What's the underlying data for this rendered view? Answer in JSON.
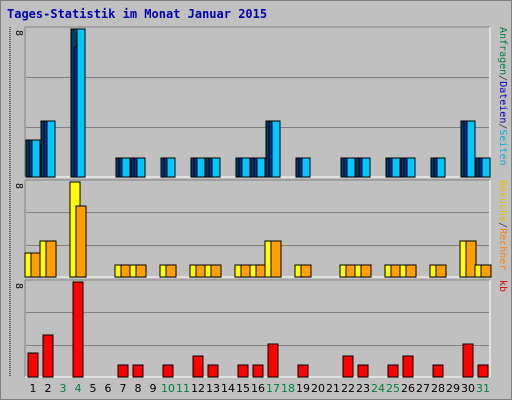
{
  "title": "Tages-Statistik im Monat Januar 2015",
  "chart_data": {
    "type": "bar",
    "categories": [
      "1",
      "2",
      "3",
      "4",
      "5",
      "6",
      "7",
      "8",
      "9",
      "10",
      "11",
      "12",
      "13",
      "14",
      "15",
      "16",
      "17",
      "18",
      "19",
      "20",
      "21",
      "22",
      "23",
      "24",
      "25",
      "26",
      "27",
      "28",
      "29",
      "30",
      "31"
    ],
    "weekend_categories": [
      "3",
      "4",
      "10",
      "11",
      "17",
      "18",
      "24",
      "25",
      "31"
    ],
    "panels": [
      {
        "ymax_label": "8",
        "ymax": 8,
        "right_labels": [
          {
            "text": "Anfragen",
            "color": "#008040"
          },
          {
            "text": "/",
            "color": "#404040"
          },
          {
            "text": "Dateien",
            "color": "#0000c0"
          },
          {
            "text": "/",
            "color": "#404040"
          },
          {
            "text": "Seiten",
            "color": "#00b0d0"
          }
        ],
        "series": [
          {
            "name": "Anfragen",
            "color": "#004060",
            "values": [
              2,
              3,
              0,
              8,
              0,
              0,
              1,
              1,
              0,
              1,
              0,
              1,
              1,
              0,
              1,
              1,
              3,
              0,
              1,
              0,
              0,
              1,
              1,
              0,
              1,
              1,
              0,
              1,
              0,
              3,
              1
            ]
          },
          {
            "name": "Dateien",
            "color": "#0030a0",
            "values": [
              2,
              3,
              0,
              7,
              0,
              0,
              1,
              1,
              0,
              1,
              0,
              1,
              1,
              0,
              1,
              1,
              3,
              0,
              1,
              0,
              0,
              1,
              1,
              0,
              1,
              1,
              0,
              1,
              0,
              3,
              1
            ]
          },
          {
            "name": "Seiten",
            "color": "#00c8ff",
            "values": [
              2,
              3,
              0,
              8,
              0,
              0,
              1,
              1,
              0,
              1,
              0,
              1,
              1,
              0,
              1,
              1,
              3,
              0,
              1,
              0,
              0,
              1,
              1,
              0,
              1,
              1,
              0,
              1,
              0,
              3,
              1
            ]
          }
        ]
      },
      {
        "ymax_label": "8",
        "ymax": 8,
        "right_labels": [
          {
            "text": "Besuche",
            "color": "#e0c000"
          },
          {
            "text": "/",
            "color": "#404040"
          },
          {
            "text": "Rechner",
            "color": "#ff8000"
          }
        ],
        "series": [
          {
            "name": "Besuche",
            "color": "#ffff00",
            "values": [
              2,
              3,
              0,
              8,
              0,
              0,
              1,
              1,
              0,
              1,
              0,
              1,
              1,
              0,
              1,
              1,
              3,
              0,
              1,
              0,
              0,
              1,
              1,
              0,
              1,
              1,
              0,
              1,
              0,
              3,
              1
            ]
          },
          {
            "name": "Rechner",
            "color": "#ffa000",
            "values": [
              2,
              3,
              0,
              6,
              0,
              0,
              1,
              1,
              0,
              1,
              0,
              1,
              1,
              0,
              1,
              1,
              3,
              0,
              1,
              0,
              0,
              1,
              1,
              0,
              1,
              1,
              0,
              1,
              0,
              3,
              1
            ]
          }
        ]
      },
      {
        "ymax_label": "8",
        "ymax": 8,
        "right_labels": [
          {
            "text": "kb",
            "color": "#e00000"
          }
        ],
        "series": [
          {
            "name": "kb",
            "color": "#ff0000",
            "values": [
              2.0,
              3.5,
              0,
              8.0,
              0,
              0,
              1.0,
              1.0,
              0,
              1.0,
              0,
              1.8,
              1.0,
              0,
              1.0,
              1.0,
              2.8,
              0,
              1.0,
              0,
              0,
              1.8,
              1.0,
              0,
              1.0,
              1.8,
              0,
              1.0,
              0,
              2.8,
              1.0
            ]
          }
        ]
      }
    ],
    "colors": {
      "plot_bg": "#c0c0c0",
      "gridline": "#808080",
      "weekday_tick": "#000000",
      "weekend_tick": "#008040"
    }
  }
}
